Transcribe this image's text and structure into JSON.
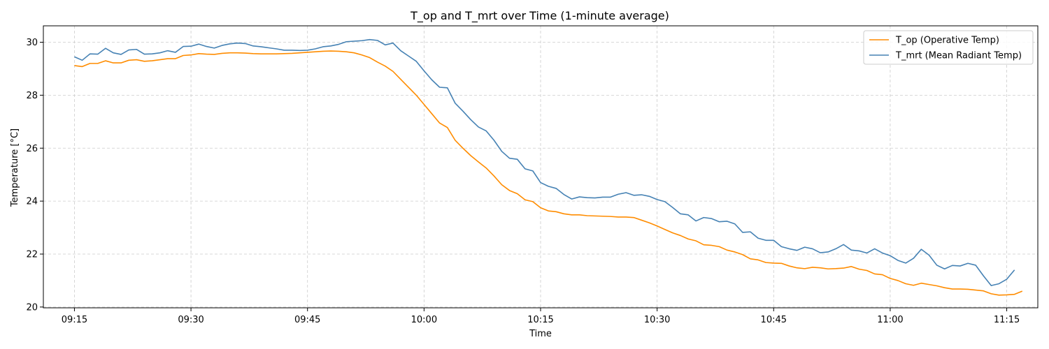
{
  "chart_data": {
    "type": "line",
    "title": "T_op and T_mrt over Time (1-minute average)",
    "xlabel": "Time",
    "ylabel": "Temperature [°C]",
    "x_start": "09:15",
    "x_end": "11:15",
    "xlim": [
      "09:11",
      "11:19"
    ],
    "ylim": [
      19.97,
      30.62
    ],
    "x_ticks": [
      "09:15",
      "09:30",
      "09:45",
      "10:00",
      "10:15",
      "10:30",
      "10:45",
      "11:00",
      "11:15"
    ],
    "y_ticks": [
      20,
      22,
      24,
      26,
      28,
      30
    ],
    "grid": true,
    "legend_position": "top-right",
    "series": [
      {
        "name": "T_op (Operative Temp)",
        "color": "#ff8c00",
        "values": [
          29.12,
          29.08,
          29.2,
          29.2,
          29.3,
          29.22,
          29.22,
          29.32,
          29.34,
          29.28,
          29.3,
          29.34,
          29.38,
          29.38,
          29.5,
          29.52,
          29.57,
          29.55,
          29.54,
          29.58,
          29.6,
          29.6,
          29.59,
          29.57,
          29.56,
          29.56,
          29.56,
          29.57,
          29.58,
          29.6,
          29.62,
          29.64,
          29.66,
          29.67,
          29.66,
          29.64,
          29.6,
          29.52,
          29.42,
          29.25,
          29.1,
          28.9,
          28.6,
          28.3,
          28.0,
          27.65,
          27.3,
          26.95,
          26.78,
          26.3,
          26.0,
          25.72,
          25.48,
          25.25,
          24.95,
          24.62,
          24.4,
          24.28,
          24.05,
          23.98,
          23.75,
          23.63,
          23.6,
          23.52,
          23.48,
          23.48,
          23.45,
          23.44,
          23.43,
          23.42,
          23.4,
          23.4,
          23.38,
          23.28,
          23.18,
          23.06,
          22.93,
          22.8,
          22.7,
          22.57,
          22.5,
          22.35,
          22.33,
          22.28,
          22.15,
          22.08,
          21.98,
          21.82,
          21.78,
          21.68,
          21.66,
          21.65,
          21.55,
          21.48,
          21.45,
          21.5,
          21.48,
          21.44,
          21.45,
          21.47,
          21.53,
          21.43,
          21.38,
          21.25,
          21.22,
          21.08,
          21.0,
          20.88,
          20.82,
          20.9,
          20.85,
          20.8,
          20.73,
          20.68,
          20.68,
          20.67,
          20.64,
          20.61,
          20.5,
          20.45,
          20.46,
          20.48,
          20.6
        ]
      },
      {
        "name": "T_mrt (Mean Radiant Temp)",
        "color": "#4682b4",
        "values": [
          29.45,
          29.32,
          29.56,
          29.55,
          29.77,
          29.6,
          29.54,
          29.71,
          29.73,
          29.55,
          29.56,
          29.6,
          29.68,
          29.62,
          29.84,
          29.85,
          29.93,
          29.84,
          29.78,
          29.88,
          29.94,
          29.97,
          29.95,
          29.86,
          29.83,
          29.79,
          29.75,
          29.7,
          29.7,
          29.69,
          29.7,
          29.75,
          29.83,
          29.86,
          29.92,
          30.02,
          30.04,
          30.06,
          30.1,
          30.07,
          29.9,
          29.97,
          29.68,
          29.48,
          29.28,
          28.92,
          28.58,
          28.3,
          28.28,
          27.7,
          27.4,
          27.08,
          26.8,
          26.65,
          26.3,
          25.88,
          25.62,
          25.58,
          25.22,
          25.14,
          24.7,
          24.56,
          24.48,
          24.25,
          24.08,
          24.16,
          24.13,
          24.12,
          24.15,
          24.15,
          24.26,
          24.32,
          24.22,
          24.24,
          24.18,
          24.06,
          23.98,
          23.76,
          23.52,
          23.48,
          23.25,
          23.38,
          23.34,
          23.22,
          23.24,
          23.14,
          22.82,
          22.84,
          22.6,
          22.52,
          22.52,
          22.28,
          22.2,
          22.14,
          22.26,
          22.2,
          22.05,
          22.08,
          22.2,
          22.36,
          22.15,
          22.12,
          22.04,
          22.2,
          22.04,
          21.94,
          21.76,
          21.66,
          21.84,
          22.18,
          21.96,
          21.58,
          21.44,
          21.57,
          21.55,
          21.65,
          21.58,
          21.18,
          20.81,
          20.88,
          21.05,
          21.4
        ]
      }
    ]
  }
}
